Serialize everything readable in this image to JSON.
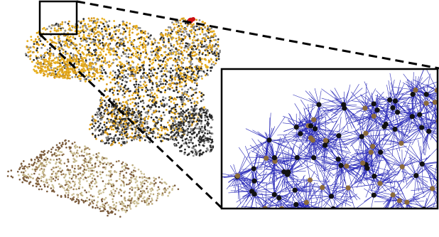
{
  "figure": {
    "colors": {
      "background": "#ffffff",
      "frame": "#000000",
      "connector": "#000000",
      "cloud_yellow": "#e8b020",
      "cloud_orange": "#d89a18",
      "cloud_gray": "#8a8a8a",
      "cloud_dark": "#2a2a2a",
      "ground_tan": "#cbbf95",
      "ground_brown": "#7a5a3a",
      "highlight_red": "#cc1010",
      "graph_edge_blue": "#2a2ab8",
      "node_black": "#111111",
      "node_tan": "#8a6a3a"
    },
    "inset": {
      "graph_nodes": 90
    }
  }
}
